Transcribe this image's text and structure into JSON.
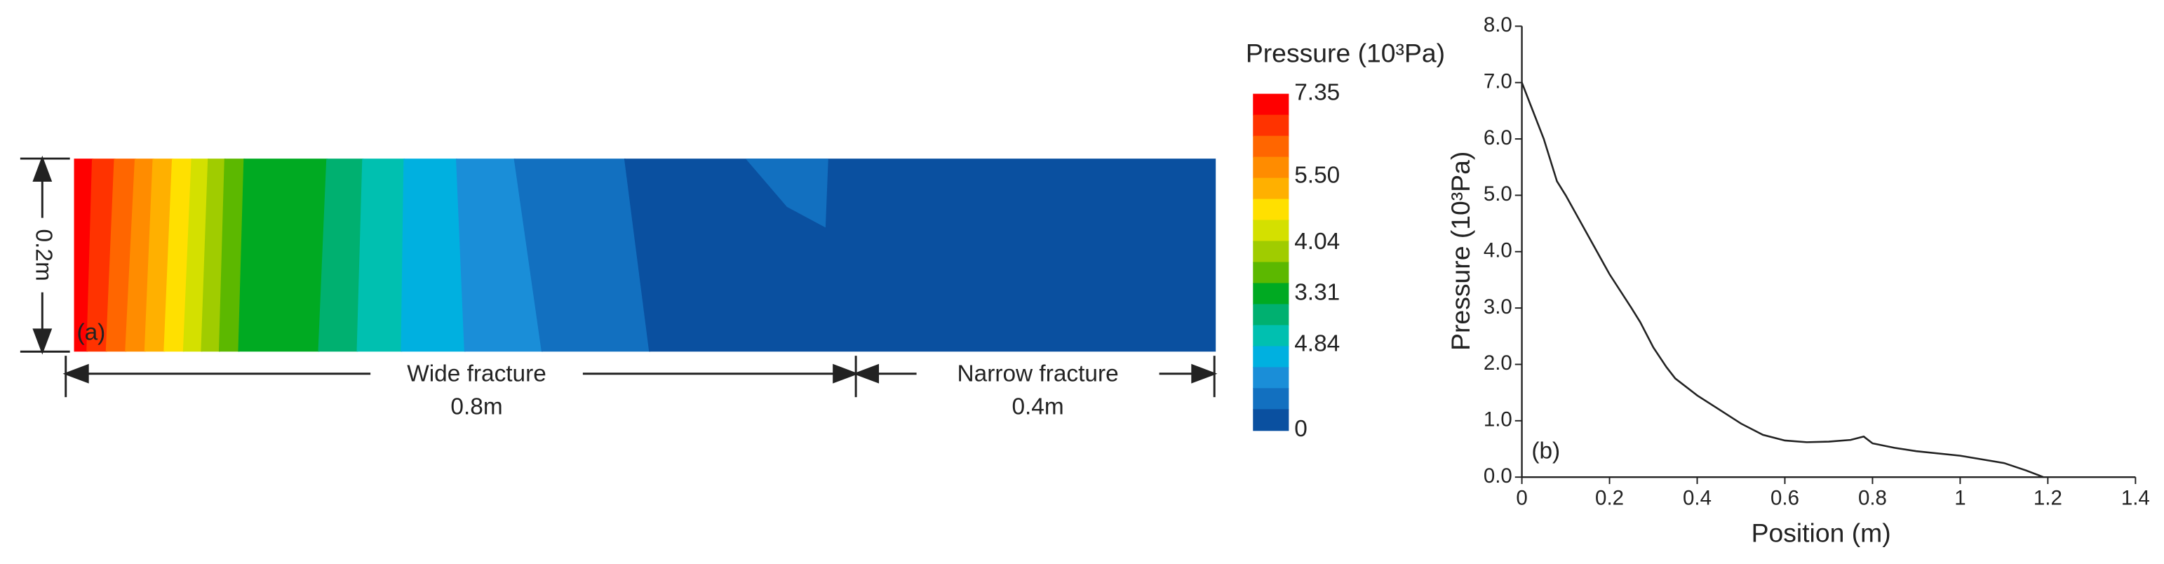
{
  "chart_data": [
    {
      "type": "contour",
      "colorbar_title": "Pressure (10³Pa)",
      "colorbar_colors": [
        "#ff0000",
        "#ff3300",
        "#ff6600",
        "#ff8c00",
        "#ffb000",
        "#ffe000",
        "#d4e000",
        "#a0cc00",
        "#5cb800",
        "#00aa22",
        "#00b070",
        "#00c0b0",
        "#00b0e0",
        "#1a8ed8",
        "#1270c0",
        "#0a50a0"
      ],
      "colorbar_labels": [
        "7.35",
        "5.50",
        "4.04",
        "3.31",
        "4.84",
        "0"
      ],
      "annotations": {
        "height": "0.2m",
        "wide": "Wide fracture",
        "wide_len": "0.8m",
        "narrow": "Narrow fracture",
        "narrow_len": "0.4m",
        "panel": "(a)"
      }
    },
    {
      "type": "line",
      "x_label": "Position (m)",
      "y_label": "Pressure (10³Pa)",
      "annotation": "(b)",
      "color": "#222222",
      "x": [
        0,
        0.02,
        0.05,
        0.08,
        0.1,
        0.15,
        0.2,
        0.25,
        0.27,
        0.3,
        0.33,
        0.35,
        0.4,
        0.45,
        0.5,
        0.55,
        0.6,
        0.65,
        0.7,
        0.75,
        0.78,
        0.8,
        0.85,
        0.9,
        1.0,
        1.1,
        1.15,
        1.18,
        1.19
      ],
      "values": [
        7.0,
        6.6,
        6.0,
        5.25,
        5.0,
        4.3,
        3.6,
        3.0,
        2.75,
        2.3,
        1.95,
        1.75,
        1.45,
        1.2,
        0.95,
        0.75,
        0.65,
        0.62,
        0.63,
        0.66,
        0.72,
        0.6,
        0.52,
        0.46,
        0.38,
        0.25,
        0.12,
        0.03,
        0.0
      ],
      "xlim": [
        0,
        1.4
      ],
      "ylim": [
        0,
        8
      ],
      "xticks": [
        0,
        0.2,
        0.4,
        0.6,
        0.8,
        1.0,
        1.2,
        1.4
      ],
      "yticks": [
        {
          "value": 0,
          "label": "0.0"
        },
        {
          "value": 1,
          "label": "1.0"
        },
        {
          "value": 2,
          "label": "2.0"
        },
        {
          "value": 3,
          "label": "3.0"
        },
        {
          "value": 4,
          "label": "4.0"
        },
        {
          "value": 5,
          "label": "5.0"
        },
        {
          "value": 6,
          "label": "6.0"
        },
        {
          "value": 7,
          "label": "7.0"
        },
        {
          "value": 8,
          "label": "8.0"
        }
      ]
    }
  ]
}
